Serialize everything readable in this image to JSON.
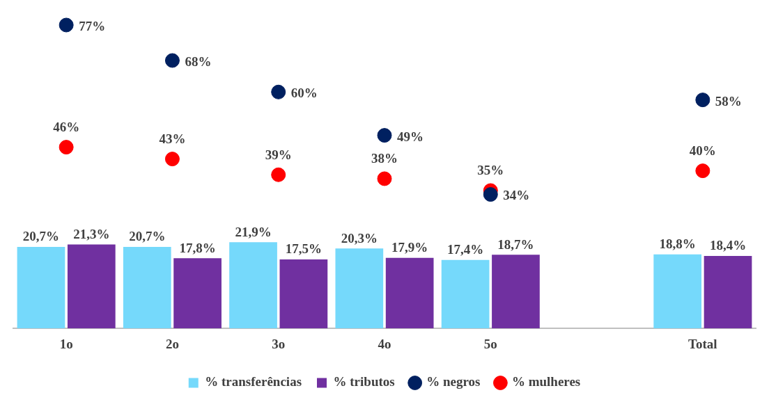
{
  "chart_data": {
    "type": "bar",
    "categories": [
      "1o",
      "2o",
      "3o",
      "4o",
      "5o",
      null,
      "Total"
    ],
    "series": [
      {
        "name": "% transferências",
        "color": "#75d9fb",
        "values": [
          20.7,
          20.7,
          21.9,
          20.3,
          17.4,
          null,
          18.8
        ],
        "value_labels": [
          "20,7%",
          "20,7%",
          "21,9%",
          "20,3%",
          "17,4%",
          null,
          "18,8%"
        ]
      },
      {
        "name": "% tributos",
        "color": "#7030a0",
        "values": [
          21.3,
          17.8,
          17.5,
          17.9,
          18.7,
          null,
          18.4
        ],
        "value_labels": [
          "21,3%",
          "17,8%",
          "17,5%",
          "17,9%",
          "18,7%",
          null,
          "18,4%"
        ]
      },
      {
        "name": "% negros",
        "type": "scatter",
        "color": "#002060",
        "values": [
          77,
          68,
          60,
          49,
          34,
          null,
          58
        ],
        "value_labels": [
          "77%",
          "68%",
          "60%",
          "49%",
          "34%",
          null,
          "58%"
        ]
      },
      {
        "name": "% mulheres",
        "type": "scatter",
        "color": "#ff0000",
        "values": [
          46,
          43,
          39,
          38,
          35,
          null,
          40
        ],
        "value_labels": [
          "46%",
          "43%",
          "39%",
          "38%",
          "35%",
          null,
          "40%"
        ]
      }
    ],
    "tick_labels": "x",
    "grid": false,
    "legend": "bottom",
    "marker": "circle"
  }
}
